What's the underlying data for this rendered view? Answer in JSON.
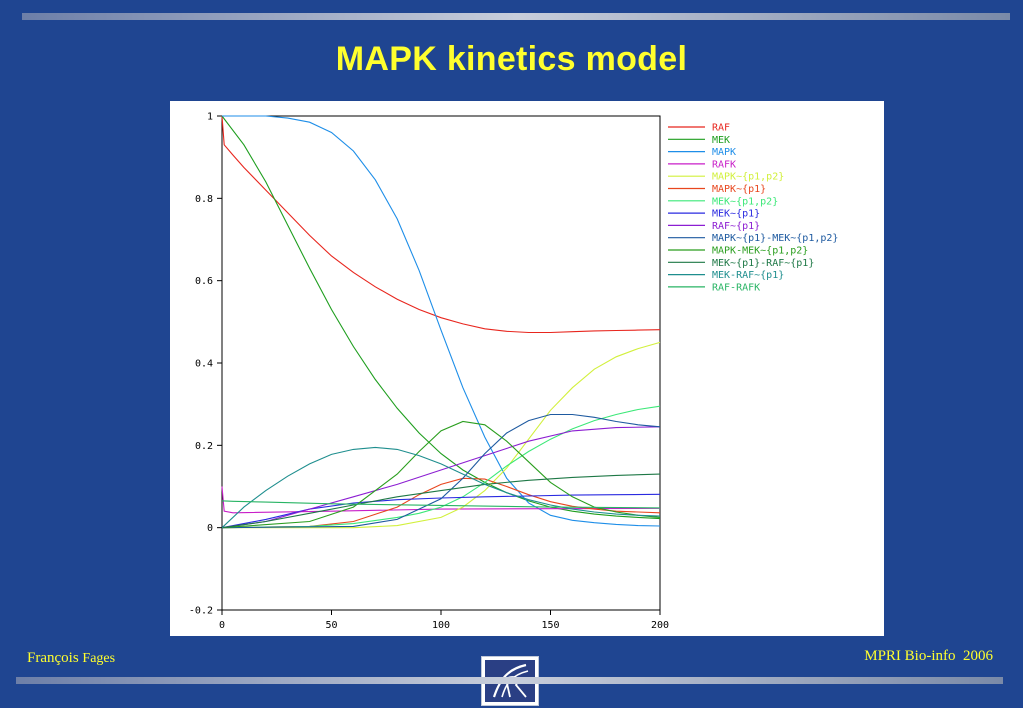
{
  "slide": {
    "title": "MAPK kinetics model",
    "footer_left_main": "François",
    "footer_left_small": "Fages",
    "footer_right": "MPRI Bio-info  2006",
    "logo_icon": "inria-logo-icon"
  },
  "chart_data": {
    "type": "line",
    "xlim": [
      0,
      200
    ],
    "ylim": [
      -0.2,
      1
    ],
    "x_ticks": [
      "0",
      "50",
      "100",
      "150",
      "200"
    ],
    "y_ticks": [
      "-0.2",
      "0",
      "0.2",
      "0.4",
      "0.6",
      "0.8",
      "1"
    ],
    "legend_position": "right",
    "series": [
      {
        "name": "RAF",
        "color": "#e8261e",
        "points": [
          [
            0,
            1
          ],
          [
            1,
            0.93
          ],
          [
            5,
            0.905
          ],
          [
            10,
            0.875
          ],
          [
            20,
            0.82
          ],
          [
            30,
            0.765
          ],
          [
            40,
            0.71
          ],
          [
            50,
            0.66
          ],
          [
            60,
            0.62
          ],
          [
            70,
            0.585
          ],
          [
            80,
            0.555
          ],
          [
            90,
            0.53
          ],
          [
            100,
            0.51
          ],
          [
            110,
            0.495
          ],
          [
            120,
            0.483
          ],
          [
            130,
            0.477
          ],
          [
            140,
            0.474
          ],
          [
            150,
            0.474
          ],
          [
            160,
            0.476
          ],
          [
            170,
            0.478
          ],
          [
            180,
            0.479
          ],
          [
            190,
            0.48
          ],
          [
            200,
            0.481
          ]
        ]
      },
      {
        "name": "MEK",
        "color": "#1e9e1e",
        "points": [
          [
            0,
            1
          ],
          [
            10,
            0.93
          ],
          [
            20,
            0.84
          ],
          [
            30,
            0.735
          ],
          [
            40,
            0.63
          ],
          [
            50,
            0.53
          ],
          [
            60,
            0.44
          ],
          [
            70,
            0.36
          ],
          [
            80,
            0.29
          ],
          [
            90,
            0.23
          ],
          [
            100,
            0.18
          ],
          [
            110,
            0.14
          ],
          [
            120,
            0.11
          ],
          [
            130,
            0.085
          ],
          [
            140,
            0.065
          ],
          [
            150,
            0.05
          ],
          [
            160,
            0.04
          ],
          [
            170,
            0.033
          ],
          [
            180,
            0.028
          ],
          [
            190,
            0.025
          ],
          [
            200,
            0.022
          ]
        ]
      },
      {
        "name": "MAPK",
        "color": "#1e8ee8",
        "points": [
          [
            0,
            1
          ],
          [
            20,
            1
          ],
          [
            30,
            0.995
          ],
          [
            40,
            0.985
          ],
          [
            50,
            0.96
          ],
          [
            60,
            0.915
          ],
          [
            70,
            0.845
          ],
          [
            80,
            0.75
          ],
          [
            90,
            0.625
          ],
          [
            100,
            0.48
          ],
          [
            110,
            0.34
          ],
          [
            120,
            0.22
          ],
          [
            130,
            0.12
          ],
          [
            140,
            0.06
          ],
          [
            150,
            0.03
          ],
          [
            160,
            0.018
          ],
          [
            170,
            0.012
          ],
          [
            180,
            0.008
          ],
          [
            190,
            0.005
          ],
          [
            200,
            0.004
          ]
        ]
      },
      {
        "name": "RAFK",
        "color": "#c81ec8",
        "points": [
          [
            0,
            0.1
          ],
          [
            1,
            0.04
          ],
          [
            5,
            0.036
          ],
          [
            50,
            0.04
          ],
          [
            100,
            0.045
          ],
          [
            150,
            0.046
          ],
          [
            200,
            0.047
          ]
        ]
      },
      {
        "name": "MAPK~{p1,p2}",
        "color": "#d2f03c",
        "points": [
          [
            0,
            0
          ],
          [
            60,
            0
          ],
          [
            80,
            0.005
          ],
          [
            100,
            0.025
          ],
          [
            110,
            0.05
          ],
          [
            120,
            0.09
          ],
          [
            130,
            0.145
          ],
          [
            140,
            0.215
          ],
          [
            150,
            0.285
          ],
          [
            160,
            0.34
          ],
          [
            170,
            0.385
          ],
          [
            180,
            0.415
          ],
          [
            190,
            0.435
          ],
          [
            200,
            0.45
          ]
        ]
      },
      {
        "name": "MAPK~{p1}",
        "color": "#e8461e",
        "points": [
          [
            0,
            0
          ],
          [
            40,
            0.003
          ],
          [
            60,
            0.015
          ],
          [
            80,
            0.05
          ],
          [
            90,
            0.08
          ],
          [
            100,
            0.105
          ],
          [
            110,
            0.12
          ],
          [
            120,
            0.118
          ],
          [
            130,
            0.1
          ],
          [
            140,
            0.08
          ],
          [
            150,
            0.063
          ],
          [
            160,
            0.052
          ],
          [
            170,
            0.045
          ],
          [
            180,
            0.04
          ],
          [
            190,
            0.038
          ],
          [
            200,
            0.036
          ]
        ]
      },
      {
        "name": "MEK~{p1,p2}",
        "color": "#3ce878",
        "points": [
          [
            0,
            0
          ],
          [
            40,
            0.003
          ],
          [
            60,
            0.01
          ],
          [
            80,
            0.025
          ],
          [
            90,
            0.035
          ],
          [
            100,
            0.05
          ],
          [
            110,
            0.075
          ],
          [
            120,
            0.11
          ],
          [
            130,
            0.15
          ],
          [
            140,
            0.185
          ],
          [
            150,
            0.215
          ],
          [
            160,
            0.24
          ],
          [
            170,
            0.26
          ],
          [
            180,
            0.275
          ],
          [
            190,
            0.287
          ],
          [
            200,
            0.295
          ]
        ]
      },
      {
        "name": "MEK~{p1}",
        "color": "#2a2ae0",
        "points": [
          [
            0,
            0
          ],
          [
            20,
            0.02
          ],
          [
            40,
            0.045
          ],
          [
            60,
            0.06
          ],
          [
            80,
            0.068
          ],
          [
            100,
            0.072
          ],
          [
            120,
            0.075
          ],
          [
            140,
            0.077
          ],
          [
            160,
            0.079
          ],
          [
            180,
            0.08
          ],
          [
            200,
            0.081
          ]
        ]
      },
      {
        "name": "RAF~{p1}",
        "color": "#8c1ed2",
        "points": [
          [
            0,
            0
          ],
          [
            20,
            0.015
          ],
          [
            40,
            0.045
          ],
          [
            60,
            0.075
          ],
          [
            80,
            0.105
          ],
          [
            100,
            0.14
          ],
          [
            120,
            0.175
          ],
          [
            140,
            0.21
          ],
          [
            160,
            0.235
          ],
          [
            180,
            0.243
          ],
          [
            200,
            0.245
          ]
        ]
      },
      {
        "name": "MAPK~{p1}-MEK~{p1,p2}",
        "color": "#1e5aa0",
        "points": [
          [
            0,
            0
          ],
          [
            60,
            0.003
          ],
          [
            80,
            0.02
          ],
          [
            100,
            0.07
          ],
          [
            110,
            0.12
          ],
          [
            120,
            0.18
          ],
          [
            130,
            0.23
          ],
          [
            140,
            0.26
          ],
          [
            150,
            0.275
          ],
          [
            160,
            0.275
          ],
          [
            170,
            0.268
          ],
          [
            180,
            0.258
          ],
          [
            190,
            0.25
          ],
          [
            200,
            0.245
          ]
        ]
      },
      {
        "name": "MAPK-MEK~{p1,p2}",
        "color": "#2a9e1e",
        "points": [
          [
            0,
            0
          ],
          [
            40,
            0.015
          ],
          [
            60,
            0.05
          ],
          [
            80,
            0.13
          ],
          [
            90,
            0.185
          ],
          [
            100,
            0.235
          ],
          [
            110,
            0.258
          ],
          [
            120,
            0.25
          ],
          [
            130,
            0.21
          ],
          [
            140,
            0.16
          ],
          [
            150,
            0.11
          ],
          [
            160,
            0.075
          ],
          [
            170,
            0.05
          ],
          [
            180,
            0.038
          ],
          [
            190,
            0.03
          ],
          [
            200,
            0.025
          ]
        ]
      },
      {
        "name": "MEK~{p1}-RAF~{p1}",
        "color": "#1e7846",
        "points": [
          [
            0,
            0
          ],
          [
            20,
            0.015
          ],
          [
            40,
            0.035
          ],
          [
            60,
            0.055
          ],
          [
            80,
            0.075
          ],
          [
            100,
            0.09
          ],
          [
            120,
            0.105
          ],
          [
            140,
            0.115
          ],
          [
            160,
            0.122
          ],
          [
            180,
            0.127
          ],
          [
            200,
            0.13
          ]
        ]
      },
      {
        "name": "MEK-RAF~{p1}",
        "color": "#1e8e8e",
        "points": [
          [
            0,
            0
          ],
          [
            10,
            0.05
          ],
          [
            20,
            0.09
          ],
          [
            30,
            0.125
          ],
          [
            40,
            0.155
          ],
          [
            50,
            0.178
          ],
          [
            60,
            0.19
          ],
          [
            70,
            0.195
          ],
          [
            80,
            0.19
          ],
          [
            90,
            0.175
          ],
          [
            100,
            0.155
          ],
          [
            110,
            0.13
          ],
          [
            120,
            0.105
          ],
          [
            130,
            0.085
          ],
          [
            140,
            0.068
          ],
          [
            150,
            0.055
          ],
          [
            160,
            0.045
          ],
          [
            170,
            0.038
          ],
          [
            180,
            0.033
          ],
          [
            190,
            0.03
          ],
          [
            200,
            0.028
          ]
        ]
      },
      {
        "name": "RAF-RAFK",
        "color": "#28b464",
        "points": [
          [
            0,
            0.065
          ],
          [
            1,
            0.065
          ],
          [
            5,
            0.064
          ],
          [
            20,
            0.062
          ],
          [
            50,
            0.058
          ],
          [
            100,
            0.054
          ],
          [
            150,
            0.05
          ],
          [
            200,
            0.048
          ]
        ]
      }
    ]
  }
}
